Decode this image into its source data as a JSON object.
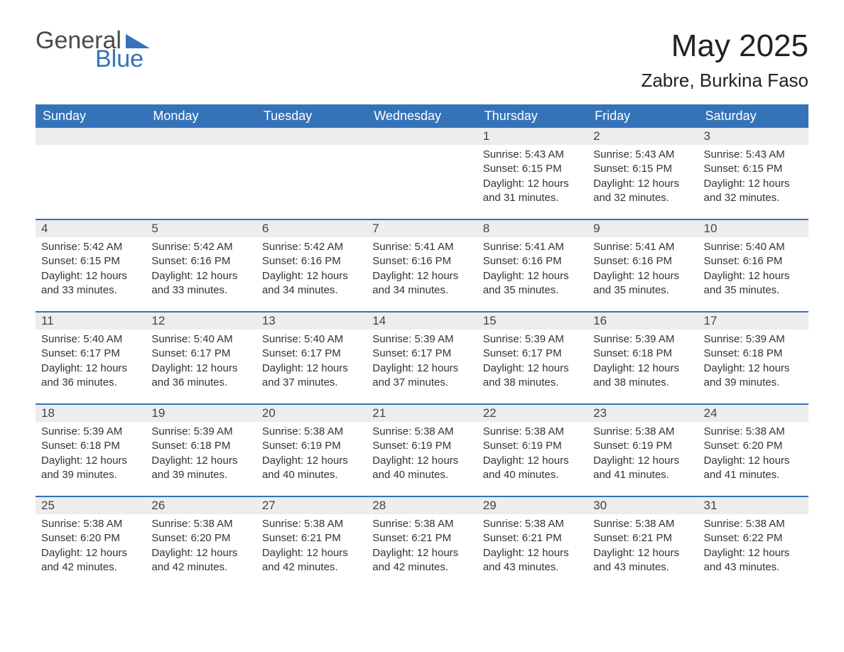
{
  "colors": {
    "header_bg": "#3573b9",
    "header_text": "#ffffff",
    "daynum_bg": "#ededed",
    "text": "#333333",
    "week_divider": "#3573b9",
    "logo_gray": "#4a4a4a",
    "logo_blue": "#3573b9",
    "background": "#ffffff"
  },
  "typography": {
    "title_fontsize": 44,
    "location_fontsize": 26,
    "header_fontsize": 18,
    "daynum_fontsize": 17,
    "body_fontsize": 15,
    "logo_fontsize": 34
  },
  "logo": {
    "text1": "General",
    "text2": "Blue"
  },
  "title": "May 2025",
  "location": "Zabre, Burkina Faso",
  "day_headers": [
    "Sunday",
    "Monday",
    "Tuesday",
    "Wednesday",
    "Thursday",
    "Friday",
    "Saturday"
  ],
  "weeks": [
    [
      {
        "n": "",
        "sr": "",
        "ss": "",
        "dl": ""
      },
      {
        "n": "",
        "sr": "",
        "ss": "",
        "dl": ""
      },
      {
        "n": "",
        "sr": "",
        "ss": "",
        "dl": ""
      },
      {
        "n": "",
        "sr": "",
        "ss": "",
        "dl": ""
      },
      {
        "n": "1",
        "sr": "Sunrise: 5:43 AM",
        "ss": "Sunset: 6:15 PM",
        "dl": "Daylight: 12 hours and 31 minutes."
      },
      {
        "n": "2",
        "sr": "Sunrise: 5:43 AM",
        "ss": "Sunset: 6:15 PM",
        "dl": "Daylight: 12 hours and 32 minutes."
      },
      {
        "n": "3",
        "sr": "Sunrise: 5:43 AM",
        "ss": "Sunset: 6:15 PM",
        "dl": "Daylight: 12 hours and 32 minutes."
      }
    ],
    [
      {
        "n": "4",
        "sr": "Sunrise: 5:42 AM",
        "ss": "Sunset: 6:15 PM",
        "dl": "Daylight: 12 hours and 33 minutes."
      },
      {
        "n": "5",
        "sr": "Sunrise: 5:42 AM",
        "ss": "Sunset: 6:16 PM",
        "dl": "Daylight: 12 hours and 33 minutes."
      },
      {
        "n": "6",
        "sr": "Sunrise: 5:42 AM",
        "ss": "Sunset: 6:16 PM",
        "dl": "Daylight: 12 hours and 34 minutes."
      },
      {
        "n": "7",
        "sr": "Sunrise: 5:41 AM",
        "ss": "Sunset: 6:16 PM",
        "dl": "Daylight: 12 hours and 34 minutes."
      },
      {
        "n": "8",
        "sr": "Sunrise: 5:41 AM",
        "ss": "Sunset: 6:16 PM",
        "dl": "Daylight: 12 hours and 35 minutes."
      },
      {
        "n": "9",
        "sr": "Sunrise: 5:41 AM",
        "ss": "Sunset: 6:16 PM",
        "dl": "Daylight: 12 hours and 35 minutes."
      },
      {
        "n": "10",
        "sr": "Sunrise: 5:40 AM",
        "ss": "Sunset: 6:16 PM",
        "dl": "Daylight: 12 hours and 35 minutes."
      }
    ],
    [
      {
        "n": "11",
        "sr": "Sunrise: 5:40 AM",
        "ss": "Sunset: 6:17 PM",
        "dl": "Daylight: 12 hours and 36 minutes."
      },
      {
        "n": "12",
        "sr": "Sunrise: 5:40 AM",
        "ss": "Sunset: 6:17 PM",
        "dl": "Daylight: 12 hours and 36 minutes."
      },
      {
        "n": "13",
        "sr": "Sunrise: 5:40 AM",
        "ss": "Sunset: 6:17 PM",
        "dl": "Daylight: 12 hours and 37 minutes."
      },
      {
        "n": "14",
        "sr": "Sunrise: 5:39 AM",
        "ss": "Sunset: 6:17 PM",
        "dl": "Daylight: 12 hours and 37 minutes."
      },
      {
        "n": "15",
        "sr": "Sunrise: 5:39 AM",
        "ss": "Sunset: 6:17 PM",
        "dl": "Daylight: 12 hours and 38 minutes."
      },
      {
        "n": "16",
        "sr": "Sunrise: 5:39 AM",
        "ss": "Sunset: 6:18 PM",
        "dl": "Daylight: 12 hours and 38 minutes."
      },
      {
        "n": "17",
        "sr": "Sunrise: 5:39 AM",
        "ss": "Sunset: 6:18 PM",
        "dl": "Daylight: 12 hours and 39 minutes."
      }
    ],
    [
      {
        "n": "18",
        "sr": "Sunrise: 5:39 AM",
        "ss": "Sunset: 6:18 PM",
        "dl": "Daylight: 12 hours and 39 minutes."
      },
      {
        "n": "19",
        "sr": "Sunrise: 5:39 AM",
        "ss": "Sunset: 6:18 PM",
        "dl": "Daylight: 12 hours and 39 minutes."
      },
      {
        "n": "20",
        "sr": "Sunrise: 5:38 AM",
        "ss": "Sunset: 6:19 PM",
        "dl": "Daylight: 12 hours and 40 minutes."
      },
      {
        "n": "21",
        "sr": "Sunrise: 5:38 AM",
        "ss": "Sunset: 6:19 PM",
        "dl": "Daylight: 12 hours and 40 minutes."
      },
      {
        "n": "22",
        "sr": "Sunrise: 5:38 AM",
        "ss": "Sunset: 6:19 PM",
        "dl": "Daylight: 12 hours and 40 minutes."
      },
      {
        "n": "23",
        "sr": "Sunrise: 5:38 AM",
        "ss": "Sunset: 6:19 PM",
        "dl": "Daylight: 12 hours and 41 minutes."
      },
      {
        "n": "24",
        "sr": "Sunrise: 5:38 AM",
        "ss": "Sunset: 6:20 PM",
        "dl": "Daylight: 12 hours and 41 minutes."
      }
    ],
    [
      {
        "n": "25",
        "sr": "Sunrise: 5:38 AM",
        "ss": "Sunset: 6:20 PM",
        "dl": "Daylight: 12 hours and 42 minutes."
      },
      {
        "n": "26",
        "sr": "Sunrise: 5:38 AM",
        "ss": "Sunset: 6:20 PM",
        "dl": "Daylight: 12 hours and 42 minutes."
      },
      {
        "n": "27",
        "sr": "Sunrise: 5:38 AM",
        "ss": "Sunset: 6:21 PM",
        "dl": "Daylight: 12 hours and 42 minutes."
      },
      {
        "n": "28",
        "sr": "Sunrise: 5:38 AM",
        "ss": "Sunset: 6:21 PM",
        "dl": "Daylight: 12 hours and 42 minutes."
      },
      {
        "n": "29",
        "sr": "Sunrise: 5:38 AM",
        "ss": "Sunset: 6:21 PM",
        "dl": "Daylight: 12 hours and 43 minutes."
      },
      {
        "n": "30",
        "sr": "Sunrise: 5:38 AM",
        "ss": "Sunset: 6:21 PM",
        "dl": "Daylight: 12 hours and 43 minutes."
      },
      {
        "n": "31",
        "sr": "Sunrise: 5:38 AM",
        "ss": "Sunset: 6:22 PM",
        "dl": "Daylight: 12 hours and 43 minutes."
      }
    ]
  ]
}
